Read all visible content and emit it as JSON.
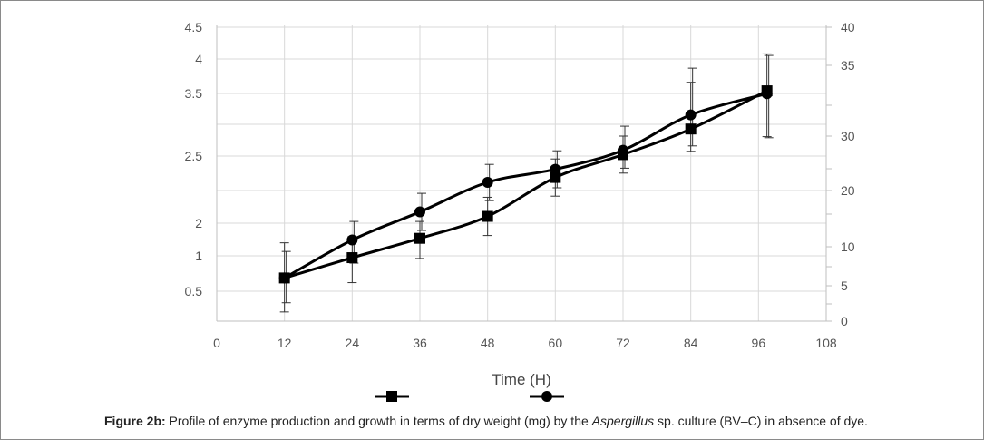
{
  "chart_data": {
    "type": "line",
    "title": "",
    "xlabel": "Time (H)",
    "xlim": [
      0,
      108
    ],
    "x_ticks": [
      "0",
      "12",
      "24",
      "36",
      "48",
      "60",
      "72",
      "84",
      "96",
      "108"
    ],
    "left_y_ticks": [
      "0.5",
      "1",
      "2",
      "2.5",
      "3.5",
      "4",
      "4.5"
    ],
    "right_y_ticks": [
      "0",
      "5",
      "10",
      "20",
      "30",
      "35",
      "40"
    ],
    "legend": "bottom-center",
    "grid": true,
    "series": [
      {
        "name": "",
        "marker": "square",
        "x": [
          12,
          24,
          36,
          48,
          60,
          72,
          84,
          97.5
        ],
        "y": [
          6,
          8.6,
          11.5,
          15.4,
          22.4,
          26.6,
          30.5,
          33.2
        ],
        "err": [
          4.7,
          3.2,
          3.0,
          3.4,
          3.4,
          3.4,
          3.3,
          3.3
        ]
      },
      {
        "name": "",
        "marker": "circle",
        "x": [
          12,
          24,
          36,
          48,
          60,
          72,
          84,
          97.5
        ],
        "y": [
          6,
          11.2,
          16.2,
          21.5,
          23.9,
          27.4,
          31.5,
          33.0
        ],
        "err": [
          3.4,
          3.3,
          3.3,
          3.3,
          3.4,
          3.3,
          3.3,
          3.3
        ]
      }
    ]
  },
  "caption": {
    "label": "Figure 2b:",
    "text_before": " Profile of enzyme production and growth in terms of dry weight (mg) by the ",
    "organism": "Aspergillus",
    "text_after": " sp. culture (BV–C) in absence of dye."
  },
  "colors": {
    "line": "#000000",
    "grid": "#d9d9d9",
    "axis": "#bfbfbf"
  }
}
